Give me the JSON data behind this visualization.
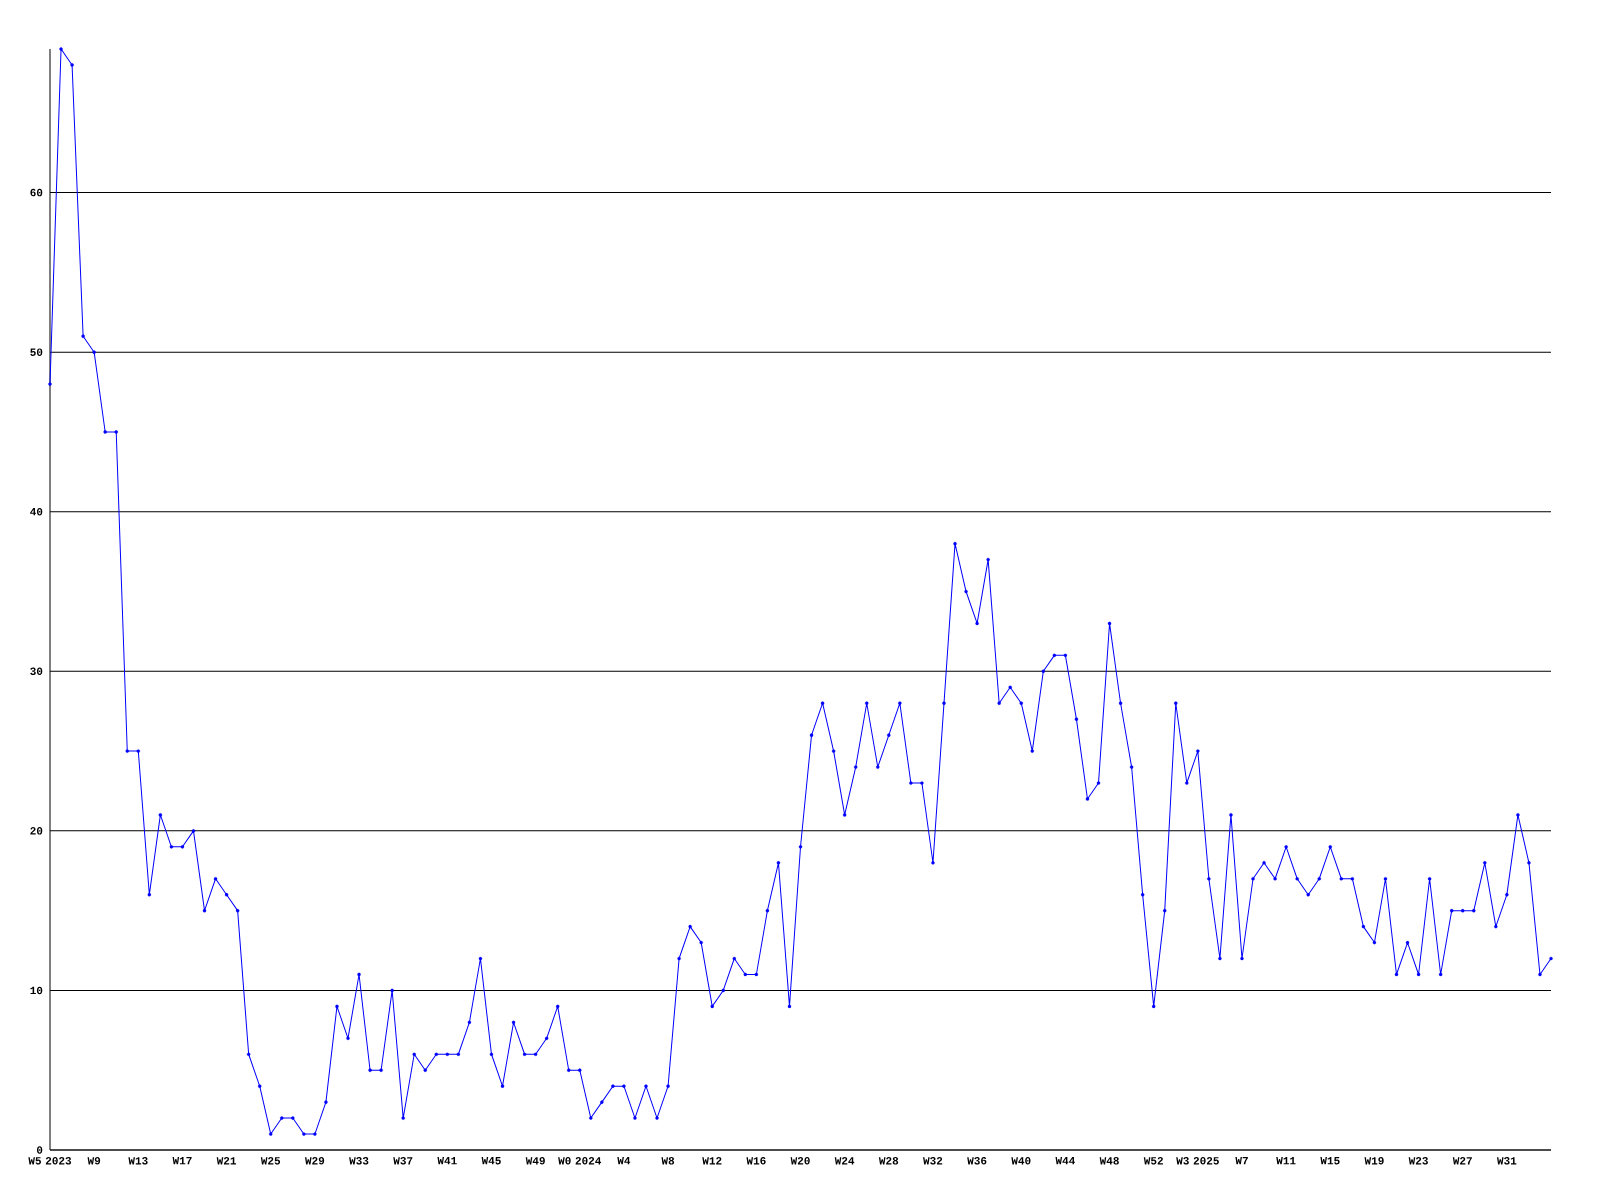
{
  "chart_data": {
    "type": "line",
    "categories": [
      "W5 2023",
      null,
      null,
      null,
      "W9",
      null,
      null,
      null,
      "W13",
      null,
      null,
      null,
      "W17",
      null,
      null,
      null,
      "W21",
      null,
      null,
      null,
      "W25",
      null,
      null,
      null,
      "W29",
      null,
      null,
      null,
      "W33",
      null,
      null,
      null,
      "W37",
      null,
      null,
      null,
      "W41",
      null,
      null,
      null,
      "W45",
      null,
      null,
      null,
      "W49",
      null,
      null,
      null,
      "W0 2024",
      null,
      null,
      null,
      "W4",
      null,
      null,
      null,
      "W8",
      null,
      null,
      null,
      "W12",
      null,
      null,
      null,
      "W16",
      null,
      null,
      null,
      "W20",
      null,
      null,
      null,
      "W24",
      null,
      null,
      null,
      "W28",
      null,
      null,
      null,
      "W32",
      null,
      null,
      null,
      "W36",
      null,
      null,
      null,
      "W40",
      null,
      null,
      null,
      "W44",
      null,
      null,
      null,
      "W48",
      null,
      null,
      null,
      "W52",
      null,
      null,
      null,
      "W3 2025",
      null,
      null,
      null,
      "W7",
      null,
      null,
      null,
      "W11",
      null,
      null,
      null,
      "W15",
      null,
      null,
      null,
      "W19",
      null,
      null,
      null,
      "W23",
      null,
      null,
      null,
      "W27",
      null,
      null,
      null,
      "W31",
      null,
      null,
      null,
      null
    ],
    "values": [
      48,
      69,
      68,
      51,
      50,
      45,
      45,
      25,
      25,
      16,
      21,
      19,
      19,
      20,
      15,
      17,
      16,
      15,
      6,
      4,
      1,
      2,
      2,
      1,
      1,
      3,
      9,
      7,
      11,
      5,
      5,
      10,
      2,
      6,
      5,
      6,
      6,
      6,
      8,
      12,
      6,
      4,
      8,
      6,
      6,
      7,
      9,
      5,
      5,
      2,
      3,
      4,
      4,
      2,
      4,
      2,
      4,
      12,
      14,
      13,
      9,
      10,
      12,
      11,
      11,
      15,
      18,
      9,
      19,
      26,
      28,
      25,
      21,
      24,
      28,
      24,
      26,
      28,
      23,
      23,
      18,
      28,
      38,
      35,
      33,
      37,
      28,
      29,
      28,
      25,
      30,
      31,
      31,
      27,
      22,
      23,
      33,
      28,
      24,
      16,
      9,
      15,
      28,
      23,
      25,
      17,
      12,
      21,
      12,
      17,
      18,
      17,
      19,
      17,
      16,
      17,
      19,
      17,
      17,
      14,
      13,
      17,
      11,
      13,
      11,
      17,
      11,
      15,
      15,
      15,
      18,
      14,
      16,
      21,
      18,
      11,
      12
    ],
    "color": "#0000ff",
    "ylim": [
      0,
      69
    ],
    "yticks": [
      0,
      10,
      20,
      30,
      40,
      50,
      60
    ],
    "grid": "y",
    "marker": "circle"
  }
}
